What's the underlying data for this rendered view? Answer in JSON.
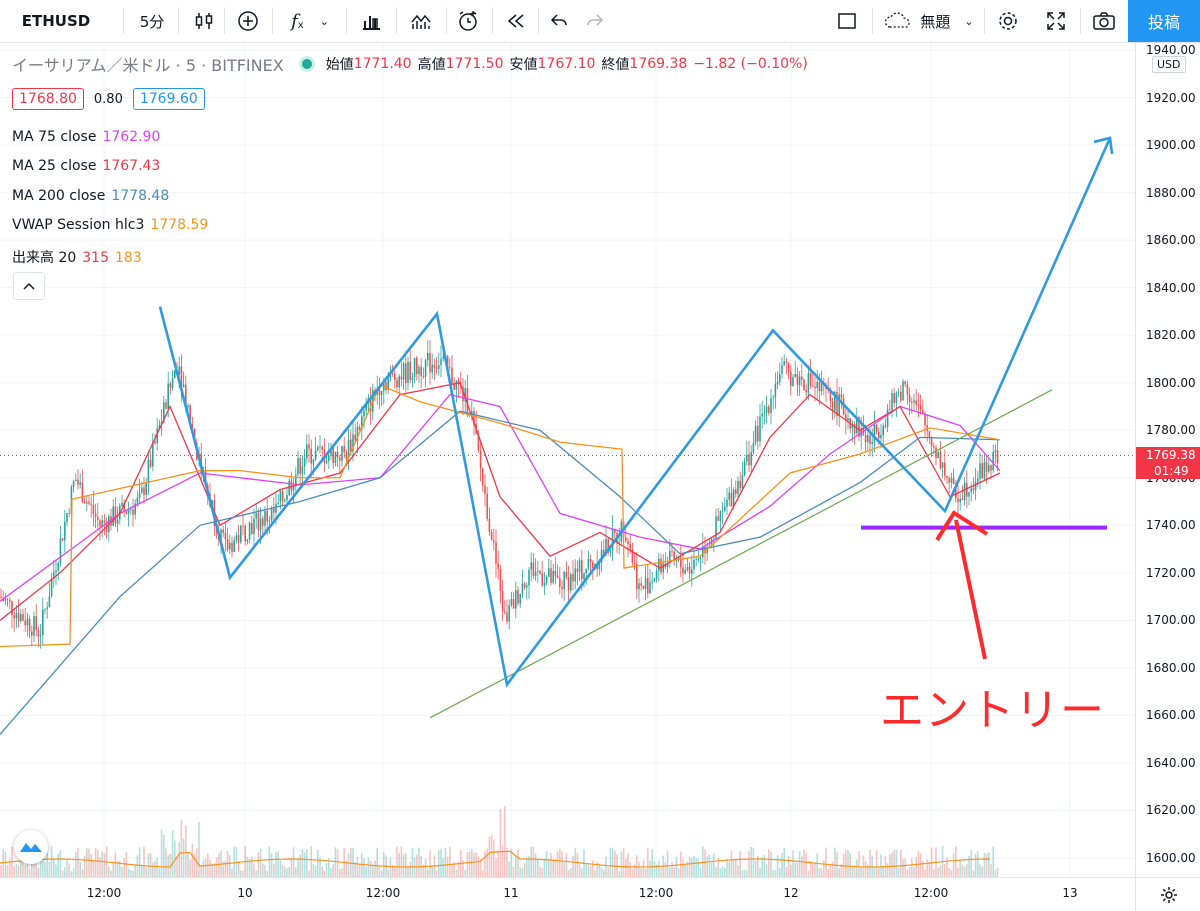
{
  "toolbar": {
    "symbol": "ETHUSD",
    "interval": "5分",
    "template": "無題",
    "publish": "投稿"
  },
  "legend": {
    "title": "イーサリアム／米ドル · 5 · BITFINEX",
    "open_label": "始値",
    "open": "1771.40",
    "high_label": "高値",
    "high": "1771.50",
    "low_label": "安値",
    "low": "1767.10",
    "close_label": "終値",
    "close": "1769.38",
    "change": "−1.82 (−0.10%)",
    "bid": "1768.80",
    "spread": "0.80",
    "ask": "1769.60"
  },
  "indicators": [
    {
      "label": "MA 75 close",
      "value": "1762.90",
      "color": "#e040fb"
    },
    {
      "label": "MA 25 close",
      "value": "1767.43",
      "color": "#f23645"
    },
    {
      "label": "MA 200 close",
      "value": "1778.48",
      "color": "#4a8cb8"
    },
    {
      "label": "VWAP Session hlc3",
      "value": "1778.59",
      "color": "#f7931a"
    }
  ],
  "volume": {
    "label": "出来高 20",
    "v1": "315",
    "v2": "183"
  },
  "price_axis": {
    "currency": "USD",
    "ticks": [
      "1940.00",
      "1920.00",
      "1900.00",
      "1880.00",
      "1860.00",
      "1840.00",
      "1820.00",
      "1800.00",
      "1780.00",
      "1760.00",
      "1740.00",
      "1720.00",
      "1700.00",
      "1680.00",
      "1660.00",
      "1640.00",
      "1620.00",
      "1600.00"
    ],
    "last_price": "1769.38",
    "countdown": "01:49"
  },
  "time_axis": {
    "ticks": [
      "12:00",
      "10",
      "12:00",
      "11",
      "12:00",
      "12",
      "12:00",
      "13"
    ]
  },
  "annotation": {
    "text": "エントリー",
    "color": "#ff2a2a"
  },
  "colors": {
    "blue_lines": "#2f9ae0",
    "support_line": "#6aa84f",
    "entry_line": "#9c27ff",
    "up": "#26a69a",
    "down": "#ef5350"
  },
  "chart_data": {
    "type": "line",
    "y_range": [
      1590,
      1945
    ],
    "x_ticks": [
      "12:00",
      "10",
      "12:00",
      "11",
      "12:00",
      "12",
      "12:00",
      "13"
    ],
    "zigzag": [
      [
        160,
        1832
      ],
      [
        230,
        1718
      ],
      [
        437,
        1829
      ],
      [
        507,
        1673
      ],
      [
        773,
        1822
      ],
      [
        945,
        1746
      ],
      [
        1110,
        1903
      ]
    ],
    "support_line": [
      [
        430,
        1659
      ],
      [
        1052,
        1797
      ]
    ],
    "entry_level": 1739,
    "series": [
      {
        "name": "MA 75 close",
        "color": "#e040fb",
        "values": [
          [
            0,
            1708
          ],
          [
            120,
            1745
          ],
          [
            200,
            1762
          ],
          [
            300,
            1757
          ],
          [
            380,
            1760
          ],
          [
            450,
            1795
          ],
          [
            500,
            1790
          ],
          [
            560,
            1745
          ],
          [
            640,
            1735
          ],
          [
            700,
            1730
          ],
          [
            770,
            1748
          ],
          [
            830,
            1770
          ],
          [
            900,
            1790
          ],
          [
            960,
            1782
          ],
          [
            1000,
            1763
          ]
        ]
      },
      {
        "name": "MA 25 close",
        "color": "#f23645",
        "values": [
          [
            0,
            1700
          ],
          [
            60,
            1720
          ],
          [
            120,
            1745
          ],
          [
            170,
            1790
          ],
          [
            220,
            1740
          ],
          [
            280,
            1755
          ],
          [
            340,
            1762
          ],
          [
            400,
            1795
          ],
          [
            460,
            1800
          ],
          [
            500,
            1752
          ],
          [
            550,
            1727
          ],
          [
            600,
            1737
          ],
          [
            660,
            1722
          ],
          [
            720,
            1737
          ],
          [
            770,
            1777
          ],
          [
            810,
            1795
          ],
          [
            860,
            1780
          ],
          [
            900,
            1790
          ],
          [
            950,
            1752
          ],
          [
            1000,
            1762
          ]
        ]
      },
      {
        "name": "MA 200 close",
        "color": "#4a8cb8",
        "values": [
          [
            0,
            1652
          ],
          [
            120,
            1710
          ],
          [
            200,
            1740
          ],
          [
            300,
            1750
          ],
          [
            380,
            1760
          ],
          [
            460,
            1788
          ],
          [
            540,
            1780
          ],
          [
            620,
            1752
          ],
          [
            680,
            1728
          ],
          [
            760,
            1735
          ],
          [
            860,
            1758
          ],
          [
            920,
            1777
          ],
          [
            1000,
            1776
          ]
        ]
      },
      {
        "name": "VWAP Session hlc3",
        "color": "#f7931a",
        "values": [
          [
            0,
            1689
          ],
          [
            70,
            1690
          ],
          [
            72,
            1751
          ],
          [
            200,
            1763
          ],
          [
            240,
            1763
          ],
          [
            300,
            1760
          ],
          [
            340,
            1760
          ],
          [
            380,
            1799
          ],
          [
            420,
            1792
          ],
          [
            500,
            1783
          ],
          [
            560,
            1775
          ],
          [
            622,
            1772
          ],
          [
            624,
            1722
          ],
          [
            700,
            1727
          ],
          [
            790,
            1762
          ],
          [
            860,
            1770
          ],
          [
            930,
            1781
          ],
          [
            1000,
            1776
          ]
        ]
      }
    ]
  }
}
